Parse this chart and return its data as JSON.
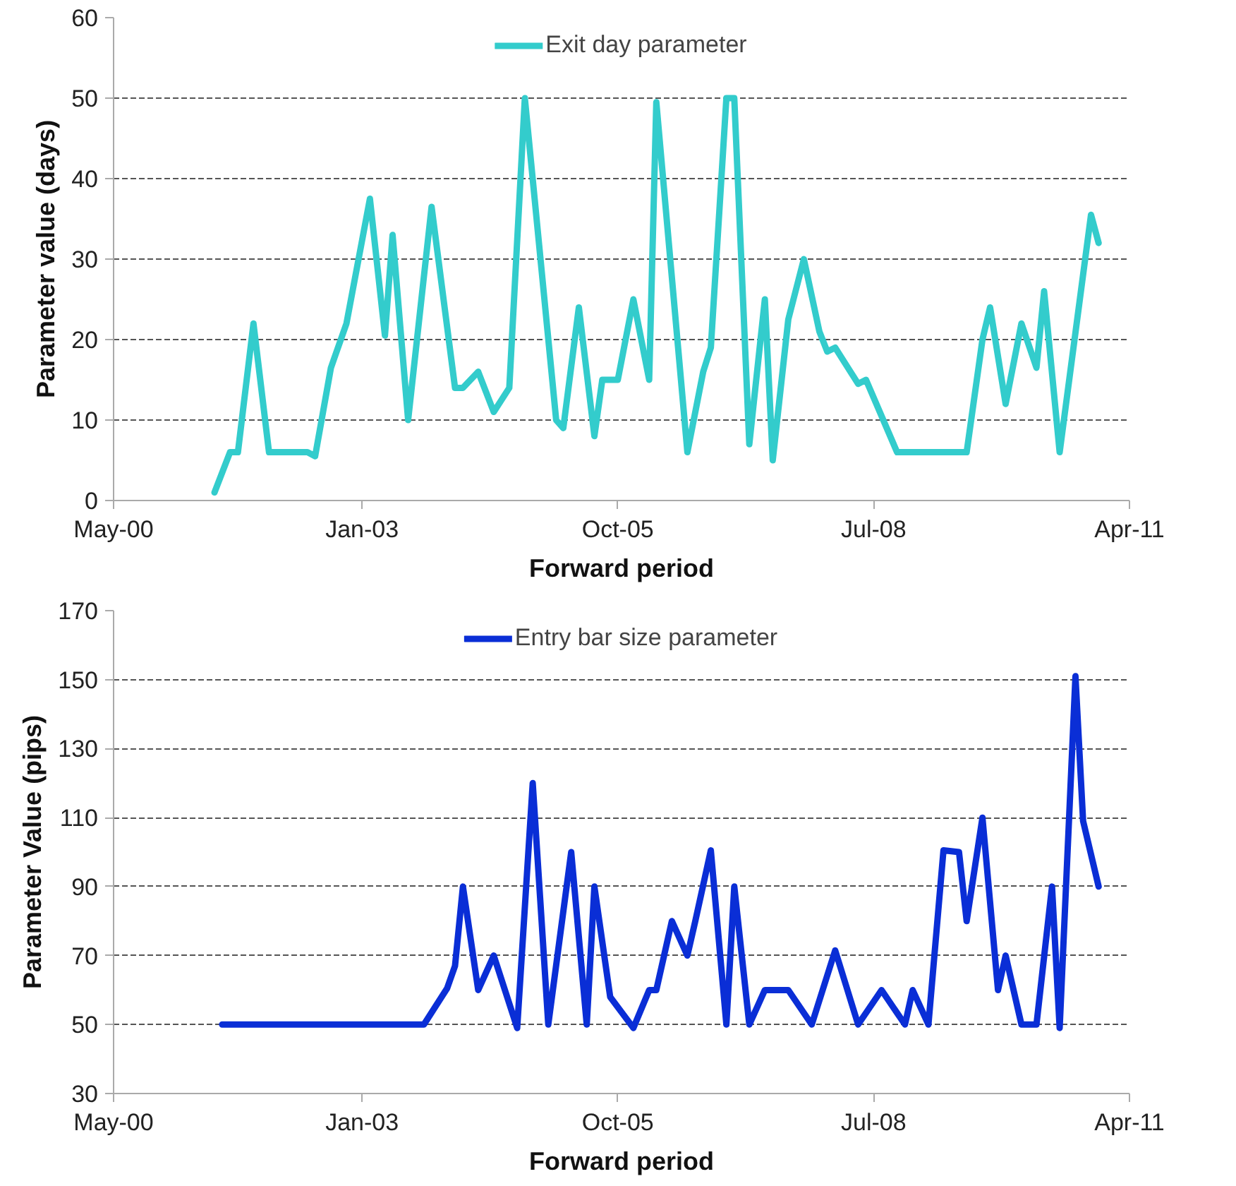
{
  "chart_data": [
    {
      "type": "line",
      "xlabel": "Forward period",
      "ylabel": "Parameter value (days)",
      "xlim": [
        "2000-05",
        "2011-04"
      ],
      "ylim": [
        0,
        60
      ],
      "yticks": [
        0,
        10,
        20,
        30,
        40,
        50,
        60
      ],
      "xticks": [
        {
          "value": "2000-05",
          "label": "May-00"
        },
        {
          "value": "2003-01",
          "label": "Jan-03"
        },
        {
          "value": "2005-10",
          "label": "Oct-05"
        },
        {
          "value": "2008-07",
          "label": "Jul-08"
        },
        {
          "value": "2011-04",
          "label": "Apr-11"
        }
      ],
      "grid": "y",
      "legend": "top",
      "marker": "none",
      "line_style": "solid",
      "x": [
        "2001-06",
        "2001-08",
        "2001-09",
        "2001-11",
        "2002-01",
        "2002-03",
        "2002-06",
        "2002-07",
        "2002-09",
        "2002-11",
        "2003-02",
        "2003-04",
        "2003-05",
        "2003-07",
        "2003-10",
        "2004-01",
        "2004-02",
        "2004-04",
        "2004-06",
        "2004-08",
        "2004-10",
        "2005-02",
        "2005-03",
        "2005-05",
        "2005-07",
        "2005-08",
        "2005-10",
        "2005-12",
        "2006-02",
        "2006-03",
        "2006-07",
        "2006-09",
        "2006-10",
        "2006-12",
        "2007-01",
        "2007-03",
        "2007-05",
        "2007-06",
        "2007-08",
        "2007-10",
        "2007-12",
        "2008-01",
        "2008-02",
        "2008-05",
        "2008-06",
        "2008-10",
        "2009-03",
        "2009-07",
        "2009-09",
        "2009-10",
        "2009-12",
        "2010-02",
        "2010-04",
        "2010-05",
        "2010-07",
        "2010-11",
        "2010-12"
      ],
      "series": [
        {
          "name": "Exit day parameter",
          "color": "#33cccc",
          "values": [
            1,
            6,
            6,
            22,
            6,
            6,
            6,
            5.5,
            16.5,
            22,
            37.5,
            20.5,
            33,
            10,
            36.5,
            14,
            14,
            16,
            11,
            14,
            50,
            10,
            9,
            24,
            8,
            15,
            15,
            25,
            15,
            49.5,
            6,
            16,
            19,
            50,
            50,
            7,
            25,
            5,
            22.5,
            30,
            21,
            18.5,
            19,
            14.5,
            15,
            6,
            6,
            6,
            20,
            24,
            12,
            22,
            16.5,
            26,
            6,
            35.5,
            32
          ]
        }
      ]
    },
    {
      "type": "line",
      "xlabel": "Forward period",
      "ylabel": "Parameter Value (pips)",
      "xlim": [
        "2000-05",
        "2011-04"
      ],
      "ylim": [
        30,
        170
      ],
      "yticks": [
        30,
        50,
        70,
        90,
        110,
        130,
        150,
        170
      ],
      "xticks": [
        {
          "value": "2000-05",
          "label": "May-00"
        },
        {
          "value": "2003-01",
          "label": "Jan-03"
        },
        {
          "value": "2005-10",
          "label": "Oct-05"
        },
        {
          "value": "2008-07",
          "label": "Jul-08"
        },
        {
          "value": "2011-04",
          "label": "Apr-11"
        }
      ],
      "grid": "y",
      "legend": "top",
      "marker": "none",
      "line_style": "solid",
      "x": [
        "2001-07",
        "2003-08",
        "2003-09",
        "2003-12",
        "2004-01",
        "2004-02",
        "2004-04",
        "2004-06",
        "2004-09",
        "2004-11",
        "2005-01",
        "2005-04",
        "2005-06",
        "2005-07",
        "2005-09",
        "2005-12",
        "2006-02",
        "2006-03",
        "2006-05",
        "2006-07",
        "2006-08",
        "2006-10",
        "2006-12",
        "2007-01",
        "2007-03",
        "2007-05",
        "2007-08",
        "2007-11",
        "2008-02",
        "2008-05",
        "2008-08",
        "2008-11",
        "2008-12",
        "2009-02",
        "2009-04",
        "2009-06",
        "2009-07",
        "2009-09",
        "2009-11",
        "2009-12",
        "2010-02",
        "2010-04",
        "2010-06",
        "2010-07",
        "2010-09",
        "2010-10",
        "2010-12"
      ],
      "series": [
        {
          "name": "Entry bar size parameter",
          "color": "#0a2ed6",
          "values": [
            50,
            50,
            50,
            60.5,
            67,
            90,
            60,
            70,
            49,
            120,
            50,
            100,
            50,
            90,
            58,
            49,
            60,
            60,
            80,
            70,
            80,
            100.5,
            50,
            90,
            50,
            60,
            60,
            50,
            71.5,
            50,
            60,
            50,
            60,
            50,
            100.5,
            100,
            80,
            110,
            60,
            70,
            50,
            50,
            90,
            49,
            151,
            109,
            90
          ]
        }
      ]
    }
  ]
}
